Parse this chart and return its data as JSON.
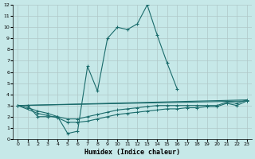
{
  "xlabel": "Humidex (Indice chaleur)",
  "xlim": [
    -0.5,
    23.5
  ],
  "ylim": [
    0,
    12
  ],
  "xticks": [
    0,
    1,
    2,
    3,
    4,
    5,
    6,
    7,
    8,
    9,
    10,
    11,
    12,
    13,
    14,
    15,
    16,
    17,
    18,
    19,
    20,
    21,
    22,
    23
  ],
  "yticks": [
    0,
    1,
    2,
    3,
    4,
    5,
    6,
    7,
    8,
    9,
    10,
    11,
    12
  ],
  "bg_color": "#c6e8e8",
  "grid_color": "#b0c8c8",
  "line_color": "#1a6b6b",
  "main_line_x": [
    0,
    1,
    2,
    3,
    4,
    5,
    6,
    7,
    8,
    9,
    10,
    11,
    12,
    13,
    14,
    15,
    16
  ],
  "main_line_y": [
    3,
    3,
    2,
    2,
    2,
    0.5,
    0.7,
    6.5,
    4.3,
    9,
    10,
    9.8,
    10.3,
    12,
    9.3,
    6.8,
    4.5
  ],
  "flat_lines": [
    {
      "x": [
        0,
        1,
        2,
        3,
        4,
        5,
        6,
        7,
        8,
        9,
        10,
        11,
        12,
        13,
        14,
        15,
        16,
        17,
        18,
        19,
        20,
        21,
        22,
        23
      ],
      "y": [
        3,
        2.8,
        2.5,
        2.3,
        2.0,
        1.8,
        1.8,
        2.0,
        2.2,
        2.4,
        2.6,
        2.7,
        2.8,
        2.9,
        3.0,
        3.0,
        3.0,
        3.0,
        3.0,
        3.0,
        3.0,
        3.3,
        3.2,
        3.5
      ]
    },
    {
      "x": [
        0,
        2,
        3,
        4,
        5,
        6,
        7,
        8,
        9,
        10,
        11,
        12,
        13,
        14,
        15,
        16,
        17,
        18,
        19,
        20,
        21,
        22,
        23
      ],
      "y": [
        3,
        2.3,
        2.1,
        1.9,
        1.5,
        1.5,
        1.6,
        1.8,
        2.0,
        2.2,
        2.3,
        2.4,
        2.5,
        2.6,
        2.7,
        2.7,
        2.8,
        2.8,
        2.9,
        2.9,
        3.2,
        3.0,
        3.4
      ]
    },
    {
      "x": [
        0,
        23
      ],
      "y": [
        3,
        3.5
      ]
    },
    {
      "x": [
        0,
        23
      ],
      "y": [
        3,
        3.4
      ]
    }
  ]
}
